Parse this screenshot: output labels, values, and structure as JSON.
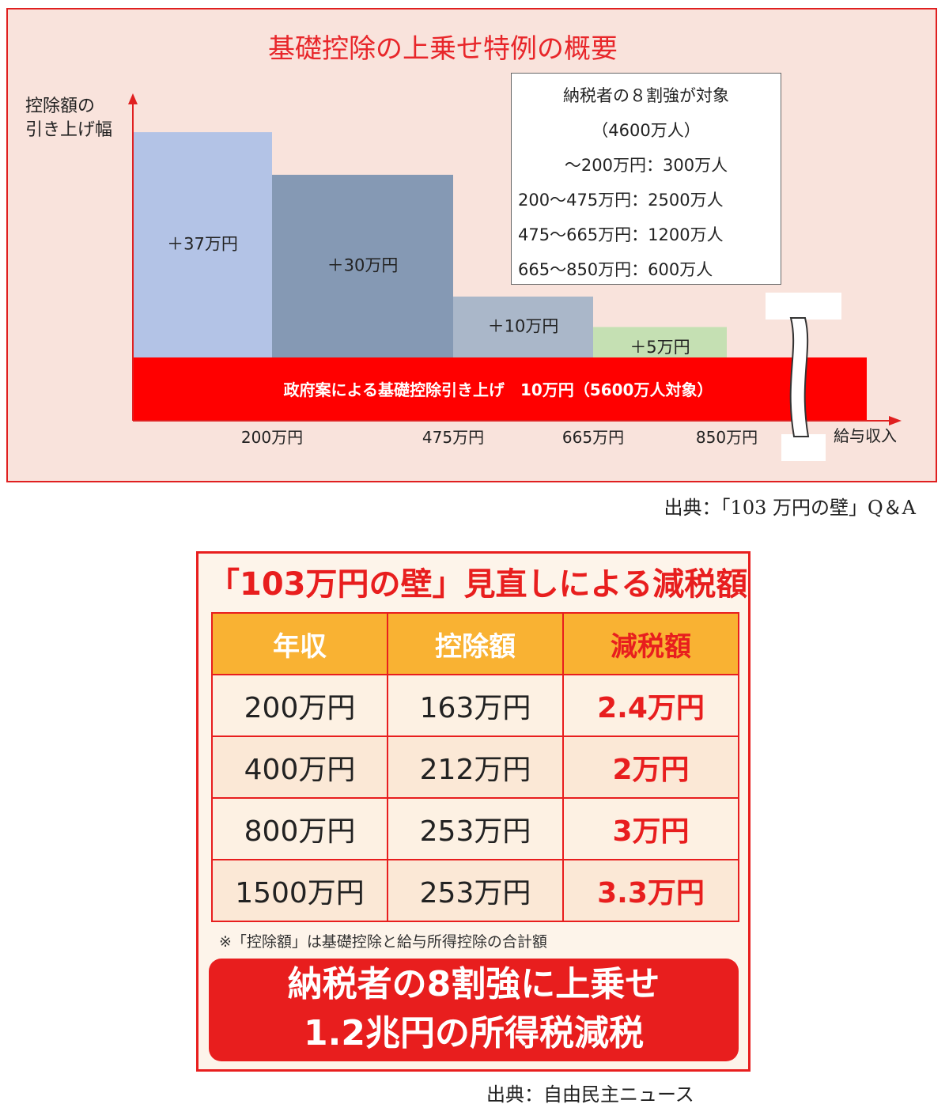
{
  "figure1": {
    "title": "基礎控除の上乗せ特例の概要",
    "y_axis_label": "控除額の\n引き上げ幅",
    "x_axis_label": "給与収入",
    "info_box": {
      "title": "納税者の８割強が対象",
      "subtitle": "（4600万人）",
      "lines": [
        "～200万円：300万人",
        "200～475万円：2500万人",
        "475～665万円：1200万人",
        "665～850万円：600万人"
      ]
    },
    "source": "出典：「103 万円の壁」Q＆A"
  },
  "chart_data": {
    "type": "bar",
    "title": "基礎控除の上乗せ特例の概要",
    "ylabel": "控除額の引き上げ幅",
    "xlabel": "給与収入",
    "x_ticks": [
      "200万円",
      "475万円",
      "665万円",
      "850万円"
    ],
    "step_bars": [
      {
        "label": "＋37万円",
        "value": 37,
        "color": "#b3c3e6"
      },
      {
        "label": "＋30万円",
        "value": 30,
        "color": "#8599b4"
      },
      {
        "label": "＋10万円",
        "value": 10,
        "color": "#aab7c9"
      },
      {
        "label": "＋5万円",
        "value": 5,
        "color": "#c5e0b3"
      }
    ],
    "base_bar": {
      "label": "政府案による基礎控除引き上げ　10万円（5600万人対象）",
      "value": 10,
      "color": "#ff0000"
    },
    "grid": false,
    "legend": "none"
  },
  "figure2": {
    "title": "「103万円の壁」見直しによる減税額",
    "headers": [
      "年収",
      "控除額",
      "減税額"
    ],
    "rows": [
      [
        "200万円",
        "163万円",
        "2.4万円"
      ],
      [
        "400万円",
        "212万円",
        "2万円"
      ],
      [
        "800万円",
        "253万円",
        "3万円"
      ],
      [
        "1500万円",
        "253万円",
        "3.3万円"
      ]
    ],
    "footnote": "※「控除額」は基礎控除と給与所得控除の合計額",
    "banner_line1": "納税者の8割強に上乗せ",
    "banner_line2": "1.2兆円の所得税減税",
    "source": "出典：自由民主ニュース",
    "colors": {
      "accent": "#e81e1e",
      "header_bg": "#f9b233"
    }
  }
}
